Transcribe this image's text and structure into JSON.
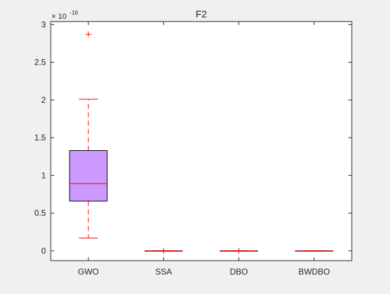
{
  "figure": {
    "background": "#f0f0f0"
  },
  "chart_data": {
    "type": "box",
    "title": "F2",
    "xlabel": "",
    "ylabel": "",
    "exponent_label": "× 10",
    "exponent_power": "-16",
    "ylim": [
      -0.13,
      3.04
    ],
    "yticks": [
      0,
      0.5,
      1,
      1.5,
      2,
      2.5,
      3
    ],
    "ytick_labels": [
      "0",
      "0.5",
      "1",
      "1.5",
      "2",
      "2.5",
      "3"
    ],
    "categories": [
      "GWO",
      "SSA",
      "DBO",
      "BWDBO"
    ],
    "boxes": [
      {
        "q1": 0.66,
        "median": 0.89,
        "q3": 1.33,
        "whisker_low": 0.17,
        "whisker_high": 2.01,
        "outliers": [
          2.87
        ],
        "fill": "#cc99ff"
      },
      {
        "q1": 0,
        "median": 0,
        "q3": 0,
        "whisker_low": 0,
        "whisker_high": 0,
        "outliers": [
          0
        ],
        "fill": "#cc99ff"
      },
      {
        "q1": 0,
        "median": 0,
        "q3": 0,
        "whisker_low": 0,
        "whisker_high": 0,
        "outliers": [
          0
        ],
        "fill": "#cc99ff"
      },
      {
        "q1": 0,
        "median": 0,
        "q3": 0,
        "whisker_low": 0,
        "whisker_high": 0,
        "outliers": [],
        "fill": "#cc99ff"
      }
    ],
    "colors": {
      "whisker": "#ff0000",
      "median": "#ff0000",
      "outlier": "#ff0000",
      "box_edge": "#000000",
      "axes_bg": "#ffffff",
      "axes_edge": "#262626"
    },
    "grid": false,
    "legend": "none"
  }
}
